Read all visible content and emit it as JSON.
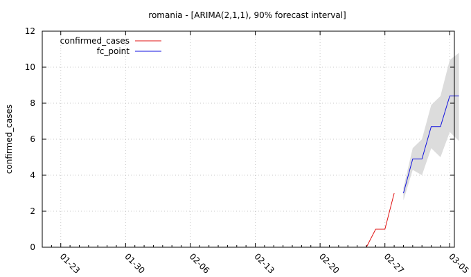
{
  "chart_data": {
    "type": "line",
    "title": "romania -  [ARIMA(2,1,1), 90% forecast interval]",
    "xlabel": "",
    "ylabel": "confirmed_cases",
    "ylim": [
      0,
      12
    ],
    "yticks": [
      0,
      2,
      4,
      6,
      8,
      10,
      12
    ],
    "xlim_day": [
      -2,
      42.5
    ],
    "xtick_labels": [
      "01-23",
      "01-30",
      "02-06",
      "02-13",
      "02-20",
      "02-27",
      "03-05"
    ],
    "xtick_days": [
      0,
      7,
      14,
      21,
      28,
      35,
      42
    ],
    "day_zero": "01-23",
    "grid": true,
    "legend_position": "top-left",
    "colors": {
      "confirmed_cases": "#e01010",
      "fc_point": "#1010e0",
      "interval": "#dcdcdc"
    },
    "series": [
      {
        "name": "confirmed_cases",
        "x": [
          33,
          34,
          35,
          36
        ],
        "y": [
          0,
          1,
          1,
          3
        ]
      },
      {
        "name": "fc_point",
        "x": [
          37,
          38,
          39,
          40,
          41,
          42,
          43
        ],
        "y": [
          3.0,
          4.9,
          4.9,
          6.7,
          6.7,
          8.4,
          8.4
        ]
      }
    ],
    "interval": {
      "x": [
        37,
        38,
        39,
        40,
        41,
        42,
        43
      ],
      "lower": [
        2.6,
        4.3,
        4.0,
        5.5,
        5.0,
        6.4,
        5.9
      ],
      "upper": [
        3.3,
        5.5,
        6.0,
        7.9,
        8.4,
        10.4,
        10.8
      ]
    }
  }
}
